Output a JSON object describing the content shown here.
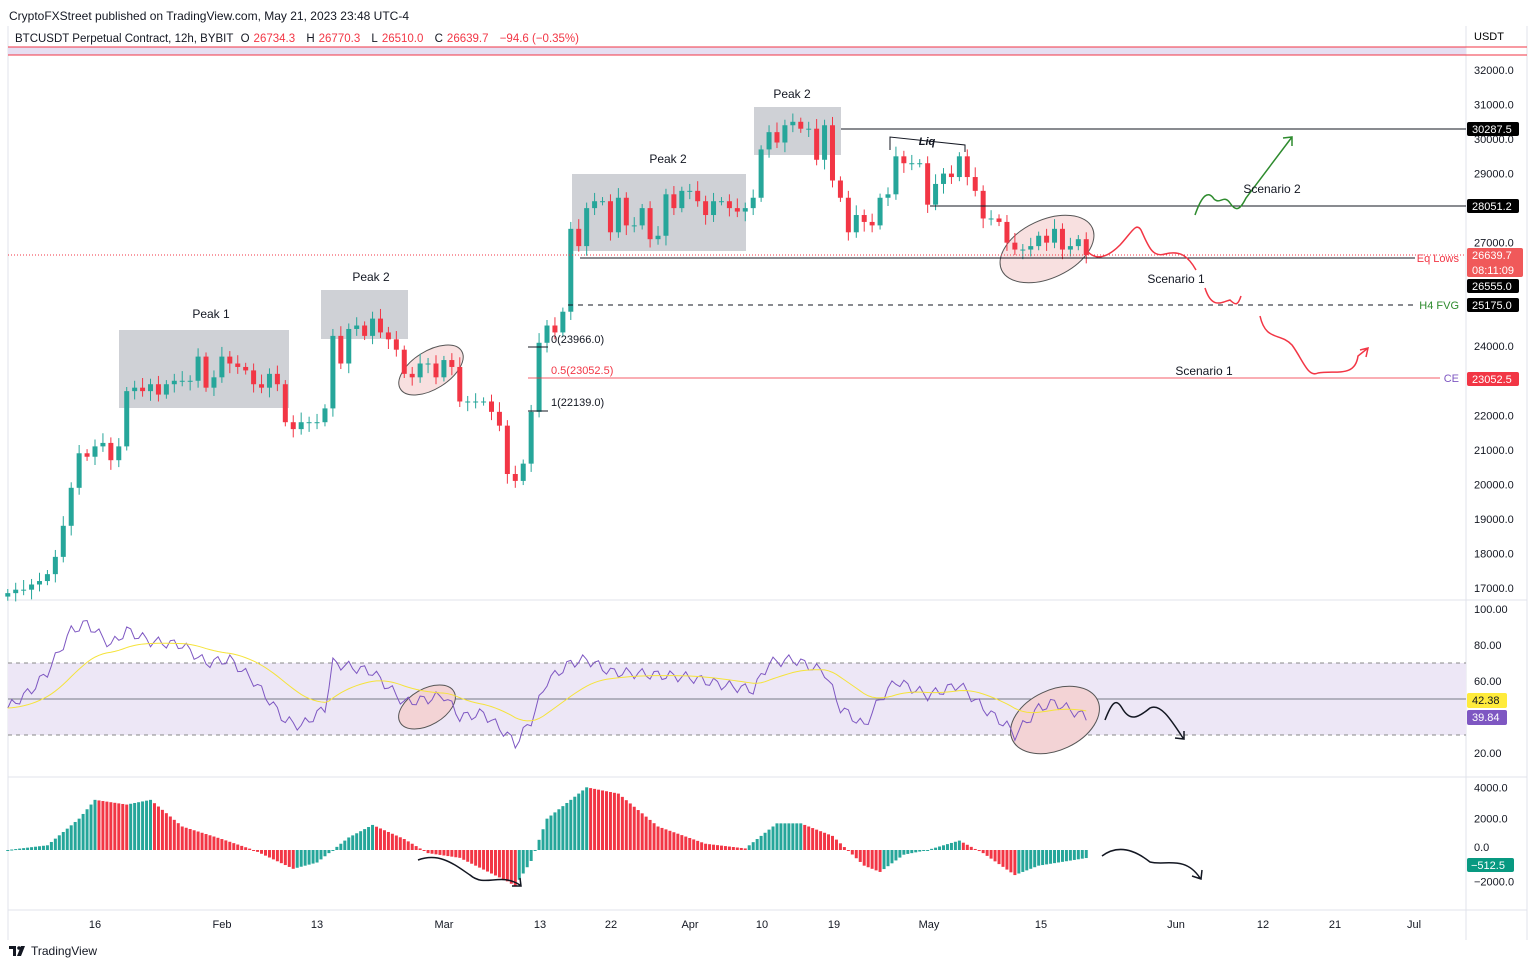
{
  "header": {
    "published": "CryptoFXStreet published on TradingView.com, May 21, 2023 23:48 UTC-4"
  },
  "legend": {
    "symbol": "BTCUSDT Perpetual Contract, 12h, BYBIT",
    "o_label": "O",
    "o": "26734.3",
    "h_label": "H",
    "h": "26770.3",
    "l_label": "L",
    "l": "26510.0",
    "c_label": "C",
    "c": "26639.7",
    "change": "−94.6 (−0.35%)"
  },
  "axis": {
    "currency": "USDT",
    "price_ticks": [
      "32000.0",
      "31000.0",
      "30000.0",
      "29000.0",
      "27000.0",
      "24000.0",
      "22000.0",
      "21000.0",
      "20000.0",
      "19000.0",
      "18000.0",
      "17000.0"
    ],
    "rsi_ticks": [
      "100.00",
      "80.00",
      "60.00",
      "20.00"
    ],
    "macd_ticks": [
      "4000.0",
      "2000.0",
      "0.0",
      "−2000.0"
    ],
    "date_ticks": [
      "16",
      "Feb",
      "13",
      "Mar",
      "13",
      "22",
      "Apr",
      "10",
      "19",
      "May",
      "15",
      "Jun",
      "12",
      "21",
      "Jul"
    ]
  },
  "price_labels": {
    "level_1": "30287.5",
    "level_2": "28051.2",
    "current": "26639.7",
    "countdown": "08:11:09",
    "eq_lows_price": "26555.0",
    "fvg_price": "25175.0",
    "ce_price": "23052.5",
    "rsi": "42.38",
    "rsi_ma": "39.84",
    "macd": "−512.5"
  },
  "annotations": {
    "peak1": "Peak 1",
    "peak2a": "Peak 2",
    "peak2b": "Peak 2",
    "peak2c": "Peak 2",
    "liq": "Liq",
    "eq_lows": "Eq Lows",
    "h4_fvg": "H4 FVG",
    "ce": "CE",
    "scenario1a": "Scenario 1",
    "scenario1b": "Scenario 1",
    "scenario2": "Scenario 2",
    "fib0": "0(23966.0)",
    "fib05": "0.5(23052.5)",
    "fib1": "1(22139.0)"
  },
  "colors": {
    "up": "#26a69a",
    "down": "#f23645",
    "rsi": "#7e57c2",
    "rsi_ma": "#f5e33a",
    "band": "#ede7f6",
    "accent_green": "#2e8b2e"
  },
  "brand": "TradingView",
  "chart_data": {
    "type": "candlestick",
    "closes": [
      [
        "01-05",
        16850
      ],
      [
        "01-06",
        16950
      ],
      [
        "01-07",
        16950
      ],
      [
        "01-08",
        17100
      ],
      [
        "01-09",
        17200
      ],
      [
        "01-10",
        17400
      ],
      [
        "01-11",
        17900
      ],
      [
        "01-12",
        18800
      ],
      [
        "01-13",
        19900
      ],
      [
        "01-14",
        20900
      ],
      [
        "01-15",
        20800
      ],
      [
        "01-16",
        21100
      ],
      [
        "01-17",
        21200
      ],
      [
        "01-18",
        20700
      ],
      [
        "01-19",
        21100
      ],
      [
        "01-20",
        22700
      ],
      [
        "01-21",
        22800
      ],
      [
        "01-22",
        22700
      ],
      [
        "01-23",
        22900
      ],
      [
        "01-24",
        22600
      ],
      [
        "01-25",
        22900
      ],
      [
        "01-26",
        23000
      ],
      [
        "01-27",
        23000
      ],
      [
        "01-28",
        23000
      ],
      [
        "01-29",
        23700
      ],
      [
        "01-30",
        22800
      ],
      [
        "01-31",
        23100
      ],
      [
        "02-01",
        23700
      ],
      [
        "02-02",
        23500
      ],
      [
        "02-03",
        23400
      ],
      [
        "02-04",
        23300
      ],
      [
        "02-05",
        22900
      ],
      [
        "02-06",
        22800
      ],
      [
        "02-07",
        23200
      ],
      [
        "02-08",
        22900
      ],
      [
        "02-09",
        21800
      ],
      [
        "02-10",
        21600
      ],
      [
        "02-11",
        21800
      ],
      [
        "02-12",
        21800
      ],
      [
        "02-13",
        21800
      ],
      [
        "02-14",
        22200
      ],
      [
        "02-15",
        24300
      ],
      [
        "02-16",
        23500
      ],
      [
        "02-17",
        24500
      ],
      [
        "02-18",
        24600
      ],
      [
        "02-19",
        24300
      ],
      [
        "02-20",
        24800
      ],
      [
        "02-21",
        24400
      ],
      [
        "02-22",
        24200
      ],
      [
        "02-23",
        23900
      ],
      [
        "02-24",
        23200
      ],
      [
        "02-25",
        23100
      ],
      [
        "02-26",
        23500
      ],
      [
        "02-27",
        23500
      ],
      [
        "02-28",
        23100
      ],
      [
        "03-01",
        23600
      ],
      [
        "03-02",
        23400
      ],
      [
        "03-03",
        22400
      ],
      [
        "03-04",
        22400
      ],
      [
        "03-05",
        22400
      ],
      [
        "03-06",
        22400
      ],
      [
        "03-07",
        22100
      ],
      [
        "03-08",
        21700
      ],
      [
        "03-09",
        20300
      ],
      [
        "03-10",
        20100
      ],
      [
        "03-11",
        20600
      ],
      [
        "03-12",
        22100
      ],
      [
        "03-13",
        24100
      ],
      [
        "03-14",
        24600
      ],
      [
        "03-15",
        24400
      ],
      [
        "03-16",
        25000
      ],
      [
        "03-17",
        27400
      ],
      [
        "03-18",
        26900
      ],
      [
        "03-19",
        28000
      ],
      [
        "03-20",
        28200
      ],
      [
        "03-21",
        28200
      ],
      [
        "03-22",
        27300
      ],
      [
        "03-23",
        28300
      ],
      [
        "03-24",
        27500
      ],
      [
        "03-25",
        27500
      ],
      [
        "03-26",
        28000
      ],
      [
        "03-27",
        27100
      ],
      [
        "03-28",
        27200
      ],
      [
        "03-29",
        28400
      ],
      [
        "03-30",
        28000
      ],
      [
        "03-31",
        28500
      ],
      [
        "04-01",
        28500
      ],
      [
        "04-02",
        28200
      ],
      [
        "04-03",
        27800
      ],
      [
        "04-04",
        28200
      ],
      [
        "04-05",
        28200
      ],
      [
        "04-06",
        28000
      ],
      [
        "04-07",
        27900
      ],
      [
        "04-08",
        28000
      ],
      [
        "04-09",
        28300
      ],
      [
        "04-10",
        29700
      ],
      [
        "04-11",
        30200
      ],
      [
        "04-12",
        29900
      ],
      [
        "04-13",
        30400
      ],
      [
        "04-14",
        30500
      ],
      [
        "04-15",
        30300
      ],
      [
        "04-16",
        30300
      ],
      [
        "04-17",
        29400
      ],
      [
        "04-18",
        30400
      ],
      [
        "04-19",
        28800
      ],
      [
        "04-20",
        28300
      ],
      [
        "04-21",
        27300
      ],
      [
        "04-22",
        27800
      ],
      [
        "04-23",
        27600
      ],
      [
        "04-24",
        27500
      ],
      [
        "04-25",
        28300
      ],
      [
        "04-26",
        28400
      ],
      [
        "04-27",
        29500
      ],
      [
        "04-28",
        29300
      ],
      [
        "04-29",
        29300
      ],
      [
        "04-30",
        29300
      ],
      [
        "05-01",
        28100
      ],
      [
        "05-02",
        28700
      ],
      [
        "05-03",
        29000
      ],
      [
        "05-04",
        28900
      ],
      [
        "05-05",
        29500
      ],
      [
        "05-06",
        28900
      ],
      [
        "05-07",
        28500
      ],
      [
        "05-08",
        27700
      ],
      [
        "05-09",
        27700
      ],
      [
        "05-10",
        27600
      ],
      [
        "05-11",
        27000
      ],
      [
        "05-12",
        26800
      ],
      [
        "05-13",
        26800
      ],
      [
        "05-14",
        26900
      ],
      [
        "05-15",
        27200
      ],
      [
        "05-16",
        27000
      ],
      [
        "05-17",
        27400
      ],
      [
        "05-18",
        26800
      ],
      [
        "05-19",
        26900
      ],
      [
        "05-20",
        27100
      ],
      [
        "05-21",
        26640
      ]
    ],
    "ylim": [
      16700,
      32600
    ],
    "rsi": [
      [
        "01-05",
        45
      ],
      [
        "01-08",
        55
      ],
      [
        "01-10",
        65
      ],
      [
        "01-13",
        88
      ],
      [
        "01-15",
        92
      ],
      [
        "01-18",
        80
      ],
      [
        "01-20",
        88
      ],
      [
        "01-23",
        82
      ],
      [
        "01-27",
        80
      ],
      [
        "01-30",
        70
      ],
      [
        "02-02",
        72
      ],
      [
        "02-05",
        60
      ],
      [
        "02-09",
        38
      ],
      [
        "02-11",
        35
      ],
      [
        "02-14",
        45
      ],
      [
        "02-15",
        70
      ],
      [
        "02-17",
        68
      ],
      [
        "02-20",
        65
      ],
      [
        "02-24",
        48
      ],
      [
        "02-27",
        50
      ],
      [
        "03-01",
        52
      ],
      [
        "03-03",
        40
      ],
      [
        "03-06",
        42
      ],
      [
        "03-09",
        30
      ],
      [
        "03-10",
        25
      ],
      [
        "03-12",
        38
      ],
      [
        "03-14",
        60
      ],
      [
        "03-17",
        70
      ],
      [
        "03-19",
        72
      ],
      [
        "03-22",
        65
      ],
      [
        "03-26",
        64
      ],
      [
        "04-01",
        62
      ],
      [
        "04-05",
        58
      ],
      [
        "04-09",
        55
      ],
      [
        "04-11",
        70
      ],
      [
        "04-14",
        72
      ],
      [
        "04-18",
        65
      ],
      [
        "04-20",
        45
      ],
      [
        "04-23",
        35
      ],
      [
        "04-25",
        50
      ],
      [
        "04-27",
        60
      ],
      [
        "05-01",
        52
      ],
      [
        "05-05",
        58
      ],
      [
        "05-08",
        45
      ],
      [
        "05-11",
        35
      ],
      [
        "05-12",
        30
      ],
      [
        "05-15",
        45
      ],
      [
        "05-17",
        48
      ],
      [
        "05-21",
        39.84
      ]
    ],
    "rsi_bands": [
      30,
      50,
      70
    ],
    "macd_hist": [
      [
        "01-05",
        0
      ],
      [
        "01-10",
        300
      ],
      [
        "01-14",
        2000
      ],
      [
        "01-16",
        3200
      ],
      [
        "01-20",
        2900
      ],
      [
        "01-23",
        3200
      ],
      [
        "01-27",
        1500
      ],
      [
        "02-01",
        700
      ],
      [
        "02-05",
        0
      ],
      [
        "02-10",
        -1200
      ],
      [
        "02-13",
        -800
      ],
      [
        "02-17",
        800
      ],
      [
        "02-20",
        1600
      ],
      [
        "02-24",
        700
      ],
      [
        "02-27",
        -200
      ],
      [
        "03-03",
        -500
      ],
      [
        "03-09",
        -2000
      ],
      [
        "03-10",
        -2300
      ],
      [
        "03-12",
        -700
      ],
      [
        "03-14",
        2000
      ],
      [
        "03-19",
        4000
      ],
      [
        "03-23",
        3600
      ],
      [
        "03-28",
        1500
      ],
      [
        "04-03",
        400
      ],
      [
        "04-08",
        100
      ],
      [
        "04-12",
        1700
      ],
      [
        "04-15",
        1700
      ],
      [
        "04-19",
        900
      ],
      [
        "04-23",
        -1000
      ],
      [
        "04-25",
        -1400
      ],
      [
        "04-28",
        -300
      ],
      [
        "05-01",
        0
      ],
      [
        "05-05",
        600
      ],
      [
        "05-08",
        -200
      ],
      [
        "05-12",
        -1600
      ],
      [
        "05-15",
        -1000
      ],
      [
        "05-21",
        -512.5
      ]
    ]
  }
}
